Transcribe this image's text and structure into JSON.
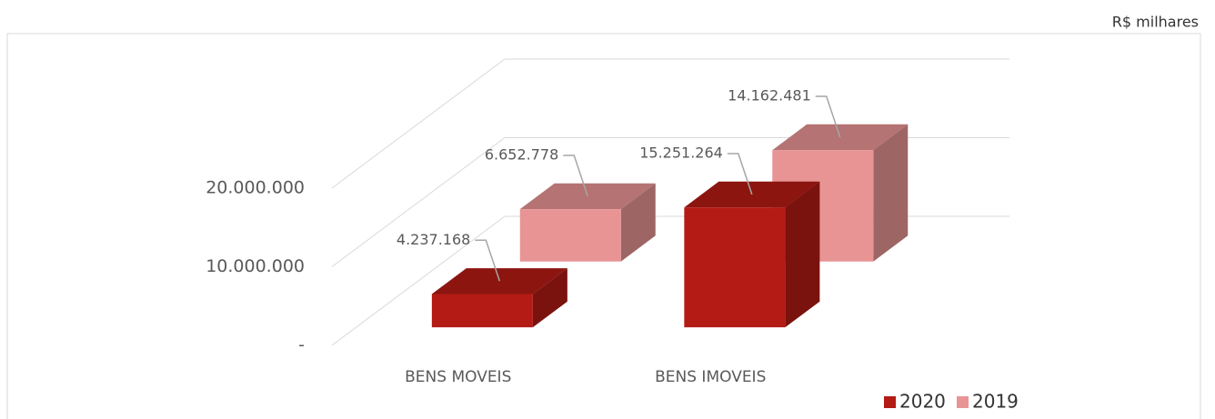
{
  "chart_data": {
    "type": "bar3d",
    "unit": "R$ milhares",
    "categories": [
      "BENS MOVEIS",
      "BENS IMOVEIS"
    ],
    "series": [
      {
        "name": "2020",
        "color": "#b31b14",
        "values": [
          4237168,
          15251264
        ],
        "value_labels": [
          "4.237.168",
          "15.251.264"
        ]
      },
      {
        "name": "2019",
        "color": "#e89494",
        "values": [
          6652778,
          14162481
        ],
        "value_labels": [
          "6.652.778",
          "14.162.481"
        ]
      }
    ],
    "ylim": [
      0,
      20000000
    ],
    "yticks": [
      {
        "value": 0,
        "label": "-"
      },
      {
        "value": 10000000,
        "label": "10.000.000"
      },
      {
        "value": 20000000,
        "label": "20.000.000"
      }
    ],
    "grid": true,
    "legend": "bottom-right"
  }
}
